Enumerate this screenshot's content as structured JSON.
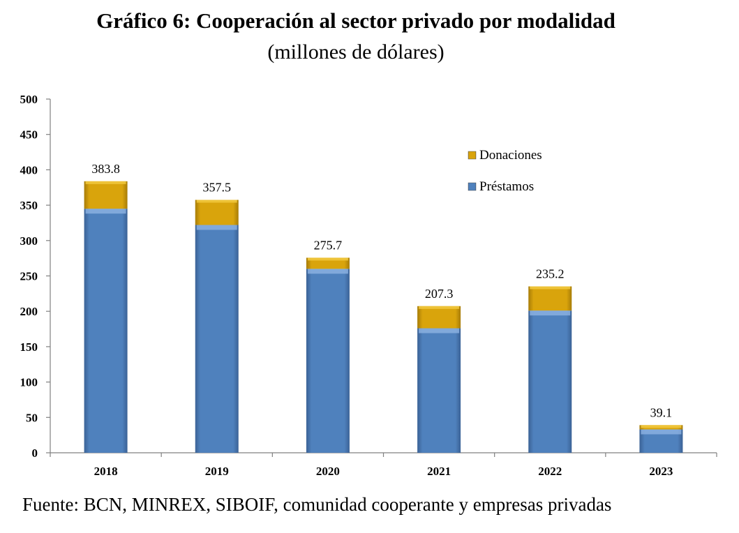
{
  "title": "Gráfico 6: Cooperación al sector privado por modalidad",
  "subtitle": "(millones de dólares)",
  "source": "Fuente: BCN, MINREX, SIBOIF, comunidad cooperante y empresas privadas",
  "colors": {
    "prestamos": "#4f81bd",
    "prestamos_top": "#8db3e2",
    "donaciones": "#d9a40c",
    "donaciones_top": "#f0c63c",
    "axis": "#808080"
  },
  "chart_data": {
    "type": "bar",
    "stacked": true,
    "categories": [
      "2018",
      "2019",
      "2020",
      "2021",
      "2022",
      "2023"
    ],
    "series": [
      {
        "name": "Préstamos",
        "values": [
          345,
          322,
          260,
          176,
          201,
          33
        ]
      },
      {
        "name": "Donaciones",
        "values": [
          38.8,
          35.5,
          15.7,
          31.3,
          34.2,
          6.1
        ]
      }
    ],
    "totals_labels": [
      "383.8",
      "357.5",
      "275.7",
      "207.3",
      "235.2",
      "39.1"
    ],
    "ylim": [
      0,
      500
    ],
    "yticks": [
      "0",
      "50",
      "100",
      "150",
      "200",
      "250",
      "300",
      "350",
      "400",
      "450",
      "500"
    ],
    "xlabel": "",
    "ylabel": "",
    "legend": [
      "Donaciones",
      "Préstamos"
    ],
    "legend_position": "top-right",
    "grid": false
  }
}
